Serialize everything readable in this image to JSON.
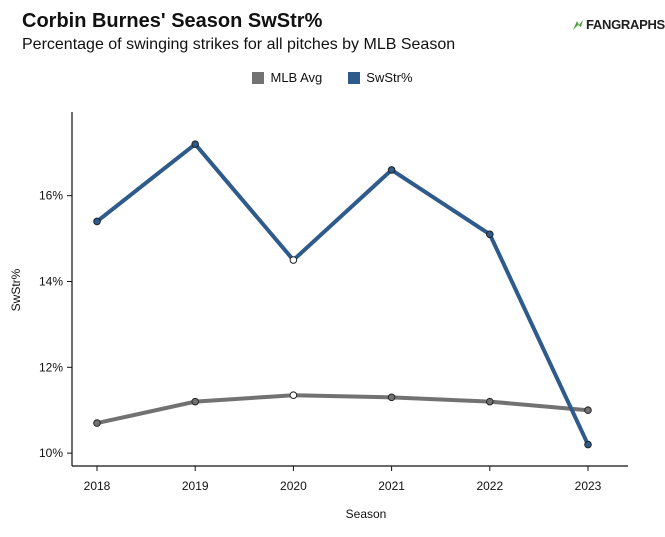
{
  "header": {
    "title": "Corbin Burnes' Season SwStr%",
    "subtitle": "Percentage of swinging strikes for all pitches by MLB Season",
    "logo_text": "FANGRAPHS"
  },
  "colors": {
    "mlb_avg": "#727272",
    "swstr": "#2e5b8c",
    "highlight_point": "#ffffff"
  },
  "chart_data": {
    "type": "line",
    "xlabel": "Season",
    "ylabel": "SwStr%",
    "x": [
      "2018",
      "2019",
      "2020",
      "2021",
      "2022",
      "2023"
    ],
    "ylim": [
      9.7,
      17.95
    ],
    "yticks": [
      10,
      12,
      14,
      16
    ],
    "ytick_labels": [
      "10%",
      "12%",
      "14%",
      "16%"
    ],
    "legend_position": "top-center",
    "grid": false,
    "series": [
      {
        "name": "MLB Avg",
        "color": "#727272",
        "values": [
          10.7,
          11.2,
          11.35,
          11.3,
          11.2,
          11.0
        ]
      },
      {
        "name": "SwStr%",
        "color": "#2e5b8c",
        "values": [
          15.4,
          17.2,
          14.5,
          16.6,
          15.1,
          10.2
        ]
      }
    ],
    "open_markers_x": [
      "2020"
    ]
  }
}
